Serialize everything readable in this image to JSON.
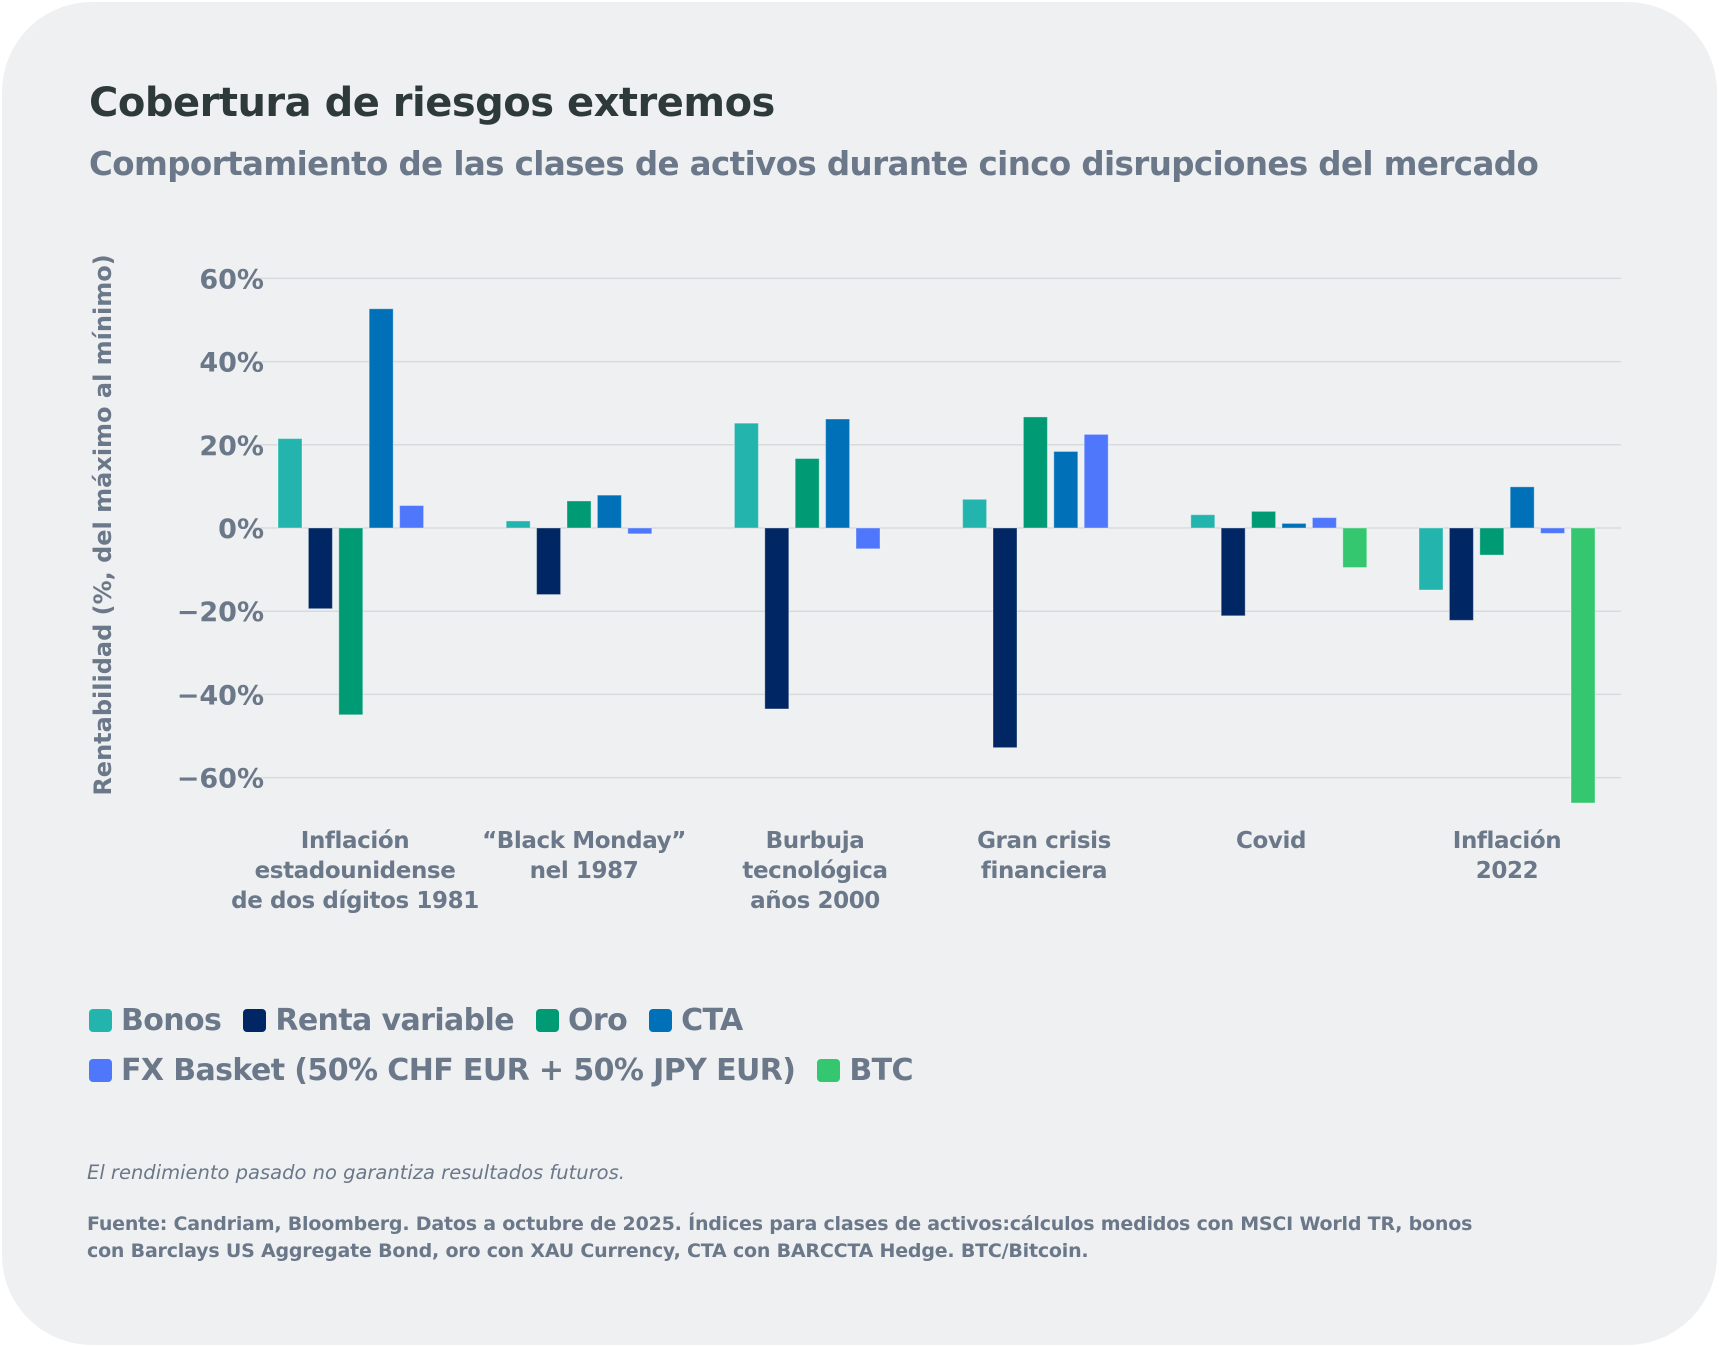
{
  "header": {
    "title": "Cobertura de riesgos extremos",
    "subtitle": "Comportamiento de las clases de activos durante cinco disrupciones del mercado"
  },
  "footer": {
    "disclaimer": "El rendimiento pasado no garantiza resultados futuros.",
    "source_line1": "Fuente: Candriam, Bloomberg. Datos a octubre de 2025. Índices para clases de activos:cálculos medidos con MSCI World TR, bonos",
    "source_line2": "con Barclays US Aggregate Bond, oro con XAU Currency, CTA con BARCCTA Hedge. BTC/Bitcoin."
  },
  "chart_data": {
    "type": "bar",
    "title": "Cobertura de riesgos extremos",
    "subtitle": "Comportamiento de las clases de activos durante cinco disrupciones del mercado",
    "xlabel": "",
    "ylabel": "Rentabilidad (%, del máximo al mínimo)",
    "ylim": [
      -60,
      60
    ],
    "yticks": [
      60,
      40,
      20,
      0,
      -20,
      -40,
      -60
    ],
    "ytick_labels": [
      "60%",
      "40%",
      "20%",
      "0%",
      "−20%",
      "−40%",
      "−60%"
    ],
    "grid": true,
    "legend_position": "bottom-left",
    "categories": [
      [
        "Inflación",
        "estadounidense",
        "de dos dígitos 1981"
      ],
      [
        "“Black Monday”",
        "nel 1987"
      ],
      [
        "Burbuja",
        "tecnológica",
        "años 2000"
      ],
      [
        "Gran crisis",
        "financiera"
      ],
      [
        "Covid"
      ],
      [
        "Inflación",
        "2022"
      ]
    ],
    "series": [
      {
        "name": "Bonos",
        "color": "#23b5ad",
        "values": [
          21.5,
          1.7,
          25.2,
          6.9,
          3.2,
          -14.9
        ]
      },
      {
        "name": "Renta variable",
        "color": "#002663",
        "values": [
          -19.4,
          -16.0,
          -43.5,
          -52.8,
          -21.1,
          -22.2
        ]
      },
      {
        "name": "Oro",
        "color": "#009b74",
        "values": [
          -44.9,
          6.5,
          16.7,
          26.7,
          4.0,
          -6.5
        ]
      },
      {
        "name": "CTA",
        "color": "#0070b8",
        "values": [
          52.7,
          7.9,
          26.2,
          18.4,
          1.1,
          9.9
        ]
      },
      {
        "name": "FX Basket (50% CHF EUR + 50% JPY EUR)",
        "color": "#4f77fb",
        "values": [
          5.4,
          -1.4,
          -5.0,
          22.5,
          2.5,
          -1.3
        ]
      },
      {
        "name": "BTC",
        "color": "#34c770",
        "values": [
          null,
          null,
          null,
          null,
          -9.5,
          -66.1
        ]
      }
    ]
  }
}
